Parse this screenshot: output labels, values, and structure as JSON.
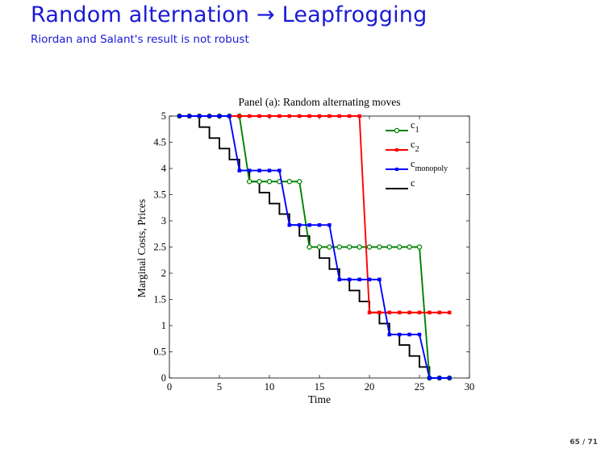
{
  "slide": {
    "title": "Random alternation → Leapfrogging",
    "subtitle": "Riordan and Salant's result is not robust",
    "page": "65 / 71"
  },
  "chart_data": {
    "type": "line",
    "title": "Panel (a): Random alternating moves",
    "xlabel": "Time",
    "ylabel": "Marginal Costs, Prices",
    "xlim": [
      0,
      30
    ],
    "ylim": [
      0,
      5
    ],
    "xticks": [
      0,
      5,
      10,
      15,
      20,
      25,
      30
    ],
    "yticks": [
      0,
      0.5,
      1,
      1.5,
      2,
      2.5,
      3,
      3.5,
      4,
      4.5,
      5
    ],
    "legend_position": "top-right",
    "series": [
      {
        "name": "c1",
        "label": "c",
        "subscript": "1",
        "color": "#008000",
        "marker": "circle",
        "x": [
          1,
          2,
          3,
          4,
          5,
          6,
          7,
          8,
          9,
          10,
          11,
          12,
          13,
          14,
          15,
          16,
          17,
          18,
          19,
          20,
          21,
          22,
          23,
          24,
          25,
          26,
          27,
          28
        ],
        "y": [
          5,
          5,
          5,
          5,
          5,
          5,
          5,
          3.75,
          3.75,
          3.75,
          3.75,
          3.75,
          3.75,
          2.5,
          2.5,
          2.5,
          2.5,
          2.5,
          2.5,
          2.5,
          2.5,
          2.5,
          2.5,
          2.5,
          2.5,
          0,
          0,
          0
        ]
      },
      {
        "name": "c2",
        "label": "c",
        "subscript": "2",
        "color": "#ff0000",
        "marker": "square",
        "x": [
          1,
          2,
          3,
          4,
          5,
          6,
          7,
          8,
          9,
          10,
          11,
          12,
          13,
          14,
          15,
          16,
          17,
          18,
          19,
          20,
          21,
          22,
          23,
          24,
          25,
          26,
          27,
          28
        ],
        "y": [
          5,
          5,
          5,
          5,
          5,
          5,
          5,
          5,
          5,
          5,
          5,
          5,
          5,
          5,
          5,
          5,
          5,
          5,
          5,
          1.25,
          1.25,
          1.25,
          1.25,
          1.25,
          1.25,
          1.25,
          1.25,
          1.25
        ]
      },
      {
        "name": "c_monopoly",
        "label": "c",
        "subscript": "monopoly",
        "color": "#0000ff",
        "marker": "square",
        "x": [
          1,
          2,
          3,
          4,
          5,
          6,
          7,
          8,
          9,
          10,
          11,
          12,
          13,
          14,
          15,
          16,
          17,
          18,
          19,
          20,
          21,
          22,
          23,
          24,
          25,
          26,
          27,
          28
        ],
        "y": [
          5,
          5,
          5,
          5,
          5,
          5,
          3.96,
          3.96,
          3.96,
          3.96,
          3.96,
          2.92,
          2.92,
          2.92,
          2.92,
          2.92,
          1.88,
          1.88,
          1.88,
          1.88,
          1.88,
          0.83,
          0.83,
          0.83,
          0.83,
          0,
          0,
          0
        ]
      },
      {
        "name": "c",
        "label": "c",
        "subscript": "",
        "color": "#000000",
        "marker": "none",
        "style": "step",
        "x": [
          1,
          2,
          3,
          4,
          5,
          6,
          7,
          8,
          9,
          10,
          11,
          12,
          13,
          14,
          15,
          16,
          17,
          18,
          19,
          20,
          21,
          22,
          23,
          24,
          25,
          26
        ],
        "y": [
          5,
          5,
          4.79,
          4.58,
          4.38,
          4.17,
          3.96,
          3.75,
          3.54,
          3.33,
          3.13,
          2.92,
          2.71,
          2.5,
          2.29,
          2.08,
          1.88,
          1.67,
          1.46,
          1.25,
          1.04,
          0.83,
          0.63,
          0.42,
          0.21,
          0
        ]
      }
    ]
  }
}
